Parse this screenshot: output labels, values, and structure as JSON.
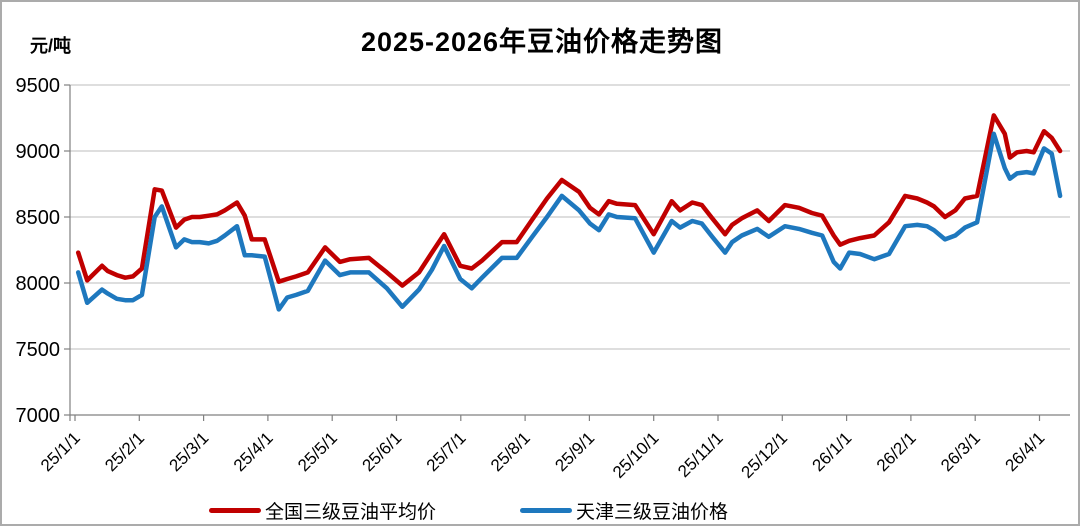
{
  "page": {
    "background": "#ffffff",
    "frame_color": "#ababab"
  },
  "chart": {
    "title": "2025-2026年豆油价格走势图",
    "y_unit_label": "元/吨"
  },
  "legend": {
    "items": [
      {
        "label": "全国三级豆油平均价",
        "color": "#C00000"
      },
      {
        "label": "天津三级豆油价格",
        "color": "#1E78BE"
      }
    ]
  },
  "chart_data": {
    "type": "line",
    "title": "2025-2026年豆油价格走势图",
    "xlabel": "",
    "ylabel": "元/吨",
    "ylim": [
      7000,
      9500
    ],
    "y_ticks": [
      9500,
      9000,
      8500,
      8000,
      7500,
      7000
    ],
    "x_tick_labels": [
      "25/1/1",
      "25/2/1",
      "25/3/1",
      "25/4/1",
      "25/5/1",
      "25/6/1",
      "25/7/1",
      "25/8/1",
      "25/9/1",
      "25/10/1",
      "25/11/1",
      "25/12/1",
      "26/1/1",
      "26/2/1",
      "26/3/1",
      "26/4/1"
    ],
    "grid": "horizontal",
    "legend_position": "bottom",
    "x_months": [
      0.05,
      0.19,
      0.42,
      0.51,
      0.65,
      0.78,
      0.9,
      1.04,
      1.24,
      1.35,
      1.57,
      1.7,
      1.82,
      1.94,
      2.08,
      2.21,
      2.33,
      2.52,
      2.64,
      2.75,
      2.95,
      3.17,
      3.3,
      3.44,
      3.62,
      3.89,
      4.12,
      4.28,
      4.57,
      4.85,
      5.09,
      5.35,
      5.55,
      5.74,
      5.99,
      6.17,
      6.33,
      6.64,
      6.87,
      7.11,
      7.34,
      7.57,
      7.84,
      8.01,
      8.15,
      8.3,
      8.43,
      8.71,
      9.0,
      9.28,
      9.41,
      9.6,
      9.75,
      9.91,
      10.11,
      10.22,
      10.37,
      10.61,
      10.79,
      11.04,
      11.26,
      11.46,
      11.62,
      11.8,
      11.9,
      12.04,
      12.21,
      12.43,
      12.66,
      12.91,
      13.1,
      13.25,
      13.36,
      13.53,
      13.69,
      13.84,
      14.03,
      14.29,
      14.46,
      14.54,
      14.65,
      14.8,
      14.91,
      15.07,
      15.19,
      15.32
    ],
    "series": [
      {
        "name": "全国三级豆油平均价",
        "color": "#C00000",
        "values": [
          8230,
          8020,
          8130,
          8090,
          8060,
          8040,
          8050,
          8110,
          8710,
          8700,
          8420,
          8480,
          8500,
          8500,
          8510,
          8520,
          8550,
          8610,
          8510,
          8330,
          8330,
          8010,
          8030,
          8050,
          8080,
          8270,
          8160,
          8180,
          8190,
          8080,
          7980,
          8080,
          8230,
          8370,
          8130,
          8110,
          8170,
          8310,
          8310,
          8480,
          8640,
          8780,
          8690,
          8570,
          8520,
          8620,
          8600,
          8590,
          8370,
          8620,
          8550,
          8610,
          8590,
          8490,
          8370,
          8440,
          8490,
          8550,
          8470,
          8590,
          8570,
          8530,
          8510,
          8360,
          8290,
          8320,
          8340,
          8360,
          8460,
          8660,
          8640,
          8610,
          8580,
          8500,
          8550,
          8640,
          8660,
          9270,
          9130,
          8950,
          8990,
          9000,
          8990,
          9150,
          9100,
          9000
        ]
      },
      {
        "name": "天津三级豆油价格",
        "color": "#1E78BE",
        "values": [
          8080,
          7850,
          7950,
          7920,
          7880,
          7870,
          7870,
          7910,
          8500,
          8580,
          8270,
          8330,
          8310,
          8310,
          8300,
          8320,
          8360,
          8430,
          8210,
          8210,
          8200,
          7800,
          7890,
          7910,
          7940,
          8170,
          8060,
          8080,
          8080,
          7960,
          7820,
          7950,
          8100,
          8280,
          8030,
          7960,
          8040,
          8190,
          8190,
          8350,
          8500,
          8660,
          8550,
          8450,
          8400,
          8520,
          8500,
          8490,
          8230,
          8470,
          8420,
          8470,
          8450,
          8350,
          8230,
          8310,
          8360,
          8410,
          8350,
          8430,
          8410,
          8380,
          8360,
          8160,
          8110,
          8230,
          8220,
          8180,
          8220,
          8430,
          8440,
          8430,
          8400,
          8330,
          8360,
          8420,
          8460,
          9130,
          8870,
          8790,
          8830,
          8840,
          8830,
          9020,
          8980,
          8660
        ]
      }
    ],
    "axis_color": "#808080",
    "grid_color": "#c9c9c9"
  }
}
